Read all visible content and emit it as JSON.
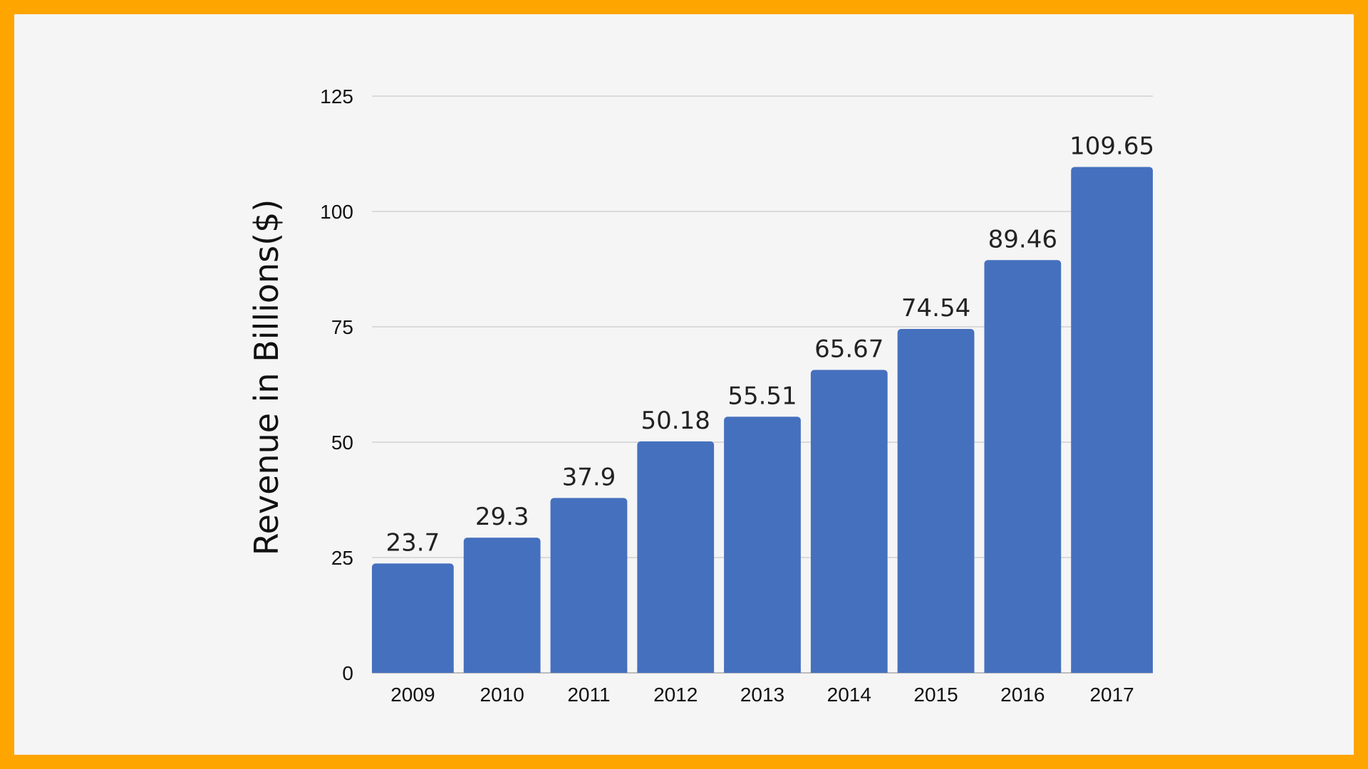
{
  "colors": {
    "frame": "#FFA500",
    "background": "#F5F5F5",
    "bar": "#4570BE",
    "grid": "#D2D2D2"
  },
  "chart_data": {
    "type": "bar",
    "title": "",
    "xlabel": "",
    "ylabel": "Revenue in Billions($)",
    "categories": [
      "2009",
      "2010",
      "2011",
      "2012",
      "2013",
      "2014",
      "2015",
      "2016",
      "2017"
    ],
    "values": [
      23.7,
      29.3,
      37.9,
      50.18,
      55.51,
      65.67,
      74.54,
      89.46,
      109.65
    ],
    "data_labels": [
      "23.7",
      "29.3",
      "37.9",
      "50.18",
      "55.51",
      "65.67",
      "74.54",
      "89.46",
      "109.65"
    ],
    "ylim": [
      0,
      125
    ],
    "yticks": [
      0,
      25,
      50,
      75,
      100,
      125
    ],
    "grid": true,
    "legend": false
  }
}
